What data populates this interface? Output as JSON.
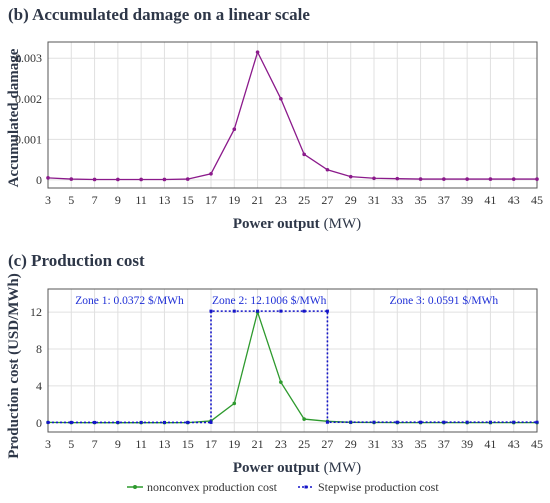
{
  "chart_data": [
    {
      "type": "line",
      "title": "(b) Accumulated damage on a linear scale",
      "xlabel_bold": "Power output",
      "xlabel_unit": "(MW)",
      "ylabel": "Accumulated damage",
      "x": [
        3,
        5,
        7,
        9,
        11,
        13,
        15,
        17,
        19,
        21,
        23,
        25,
        27,
        29,
        31,
        33,
        35,
        37,
        39,
        41,
        43,
        45
      ],
      "xticks": [
        3,
        5,
        7,
        9,
        11,
        13,
        15,
        17,
        19,
        21,
        23,
        25,
        27,
        29,
        31,
        33,
        35,
        37,
        39,
        41,
        43,
        45
      ],
      "xlim": [
        3,
        45
      ],
      "yticks": [
        0,
        0.001,
        0.002,
        0.003
      ],
      "ytick_labels": [
        "0",
        "0.001",
        "0.002",
        "0.003"
      ],
      "ylim": [
        -0.0002,
        0.0034
      ],
      "grid": true,
      "series": [
        {
          "color": "#8b1a8b",
          "values": [
            5e-05,
            2e-05,
            1e-05,
            1e-05,
            1e-05,
            1e-05,
            2e-05,
            0.00015,
            0.00125,
            0.00315,
            0.002,
            0.00063,
            0.00025,
            8e-05,
            4e-05,
            3e-05,
            2e-05,
            2e-05,
            2e-05,
            2e-05,
            2e-05,
            2e-05
          ]
        }
      ]
    },
    {
      "type": "line",
      "title": "(c) Production cost",
      "xlabel_bold": "Power output",
      "xlabel_unit": "(MW)",
      "ylabel": "Production cost  (USD/MWh)",
      "xticks": [
        3,
        5,
        7,
        9,
        11,
        13,
        15,
        17,
        19,
        21,
        23,
        25,
        27,
        29,
        31,
        33,
        35,
        37,
        39,
        41,
        43,
        45
      ],
      "xlim": [
        3,
        45
      ],
      "yticks": [
        0,
        4,
        8,
        12
      ],
      "ytick_labels": [
        "0",
        "4",
        "8",
        "12"
      ],
      "ylim": [
        -1,
        14.5
      ],
      "grid": true,
      "annotations": [
        {
          "text": "Zone 1: 0.0372 $/MWh",
          "x": 10,
          "y": 13.3
        },
        {
          "text": "Zone 2: 12.1006 $/MWh",
          "x": 22,
          "y": 13.3
        },
        {
          "text": "Zone 3: 0.0591 $/MWh",
          "x": 37,
          "y": 13.3
        }
      ],
      "series": [
        {
          "name": "nonconvex production cost",
          "color": "#2e9a2e",
          "style": "solid",
          "x": [
            3,
            5,
            7,
            9,
            11,
            13,
            15,
            17,
            19,
            21,
            23,
            25,
            27,
            29,
            31,
            33,
            35,
            37,
            39,
            41,
            43,
            45
          ],
          "values": [
            0.04,
            0.02,
            0.01,
            0.01,
            0.01,
            0.01,
            0.02,
            0.2,
            2.1,
            12.0,
            4.4,
            0.4,
            0.16,
            0.05,
            0.03,
            0.02,
            0.02,
            0.02,
            0.02,
            0.02,
            0.02,
            0.02
          ]
        },
        {
          "name": "Stepwise production cost",
          "color": "#1414c8",
          "style": "dotted",
          "x": [
            3,
            5,
            7,
            9,
            11,
            13,
            15,
            17,
            17,
            19,
            21,
            23,
            25,
            27,
            27,
            29,
            31,
            33,
            35,
            37,
            39,
            41,
            43,
            45
          ],
          "values": [
            0.0372,
            0.0372,
            0.0372,
            0.0372,
            0.0372,
            0.0372,
            0.0372,
            0.0372,
            12.1006,
            12.1006,
            12.1006,
            12.1006,
            12.1006,
            12.1006,
            0.0591,
            0.0591,
            0.0591,
            0.0591,
            0.0591,
            0.0591,
            0.0591,
            0.0591,
            0.0591,
            0.0591
          ]
        }
      ],
      "legend_position": "bottom-center"
    }
  ]
}
